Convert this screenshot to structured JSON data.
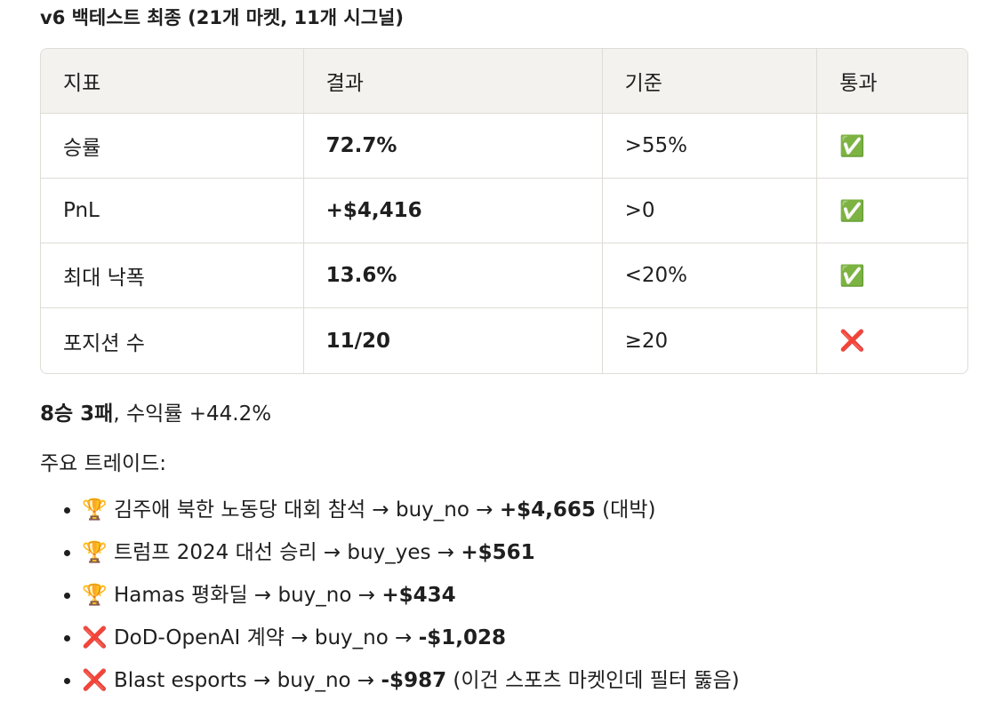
{
  "title": "v6 백테스트 최종 (21개 마켓, 11개 시그널)",
  "table": {
    "header": [
      "지표",
      "결과",
      "기준",
      "통과"
    ],
    "rows": [
      [
        "승률",
        "72.7%",
        ">55%",
        "✅"
      ],
      [
        "PnL",
        "+$4,416",
        ">0",
        "✅"
      ],
      [
        "최대 낙폭",
        "13.6%",
        "<20%",
        "✅"
      ],
      [
        "포지션 수",
        "11/20",
        "≥20",
        "❌"
      ]
    ]
  },
  "summary": [
    {
      "text": "8승 3패",
      "bold": true
    },
    {
      "text": ", 수익률 +44.2%",
      "bold": false
    }
  ],
  "trades": {
    "heading": "주요 트레이드:",
    "items": [
      [
        {
          "text": "🏆 김주애 북한 노동당 대회 참석 → buy_no → ",
          "bold": false
        },
        {
          "text": "+$4,665",
          "bold": true
        },
        {
          "text": " (대박)",
          "bold": false
        }
      ],
      [
        {
          "text": "🏆 트럼프 2024 대선 승리 → buy_yes → ",
          "bold": false
        },
        {
          "text": "+$561",
          "bold": true
        }
      ],
      [
        {
          "text": "🏆 Hamas 평화딜 → buy_no → ",
          "bold": false
        },
        {
          "text": "+$434",
          "bold": true
        }
      ],
      [
        {
          "text": "❌ DoD-OpenAI 계약 → buy_no → ",
          "bold": false
        },
        {
          "text": "-$1,028",
          "bold": true
        }
      ],
      [
        {
          "text": "❌ Blast esports → buy_no → ",
          "bold": false
        },
        {
          "text": "-$987",
          "bold": true
        },
        {
          "text": " (이건 스포츠 마켓인데 필터 뚫음)",
          "bold": false
        }
      ]
    ]
  }
}
